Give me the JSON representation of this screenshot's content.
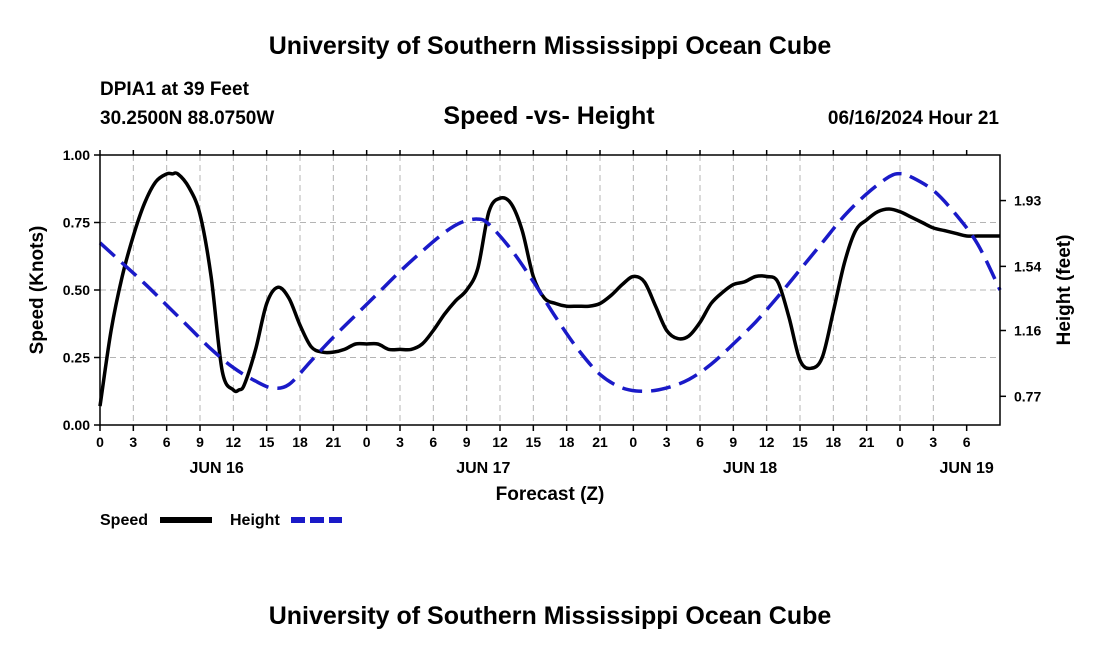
{
  "header": {
    "title": "University of Southern Mississippi Ocean Cube",
    "station": "DPIA1 at 39 Feet",
    "coords": "30.2500N  88.0750W",
    "chart_title": "Speed -vs- Height",
    "timestamp": "06/16/2024 Hour 21",
    "footer_title": "University of Southern Mississippi Ocean Cube"
  },
  "chart_data": {
    "type": "line",
    "title": "Speed -vs- Height",
    "xlabel": "Forecast (Z)",
    "ylabel_left": "Speed (Knots)",
    "ylabel_right": "Height (feet)",
    "x_hours_range": [
      0,
      81
    ],
    "y_left_range": [
      0,
      1
    ],
    "y_left_ticks": [
      "0.00",
      "0.25",
      "0.50",
      "0.75",
      "1.00"
    ],
    "y_right_range": [
      0.6,
      2.2
    ],
    "y_right_tick_values": [
      0.77,
      1.16,
      1.54,
      1.93
    ],
    "y_right_ticks": [
      "0.77",
      "1.16",
      "1.54",
      "1.93"
    ],
    "x_tick_labels": [
      "0",
      "3",
      "6",
      "9",
      "12",
      "15",
      "18",
      "21",
      "0",
      "3",
      "6",
      "9",
      "12",
      "15",
      "18",
      "21",
      "0",
      "3",
      "6",
      "9",
      "12",
      "15",
      "18",
      "21",
      "0",
      "3",
      "6"
    ],
    "date_labels": [
      {
        "label": "JUN 16",
        "hour": 10.5
      },
      {
        "label": "JUN 17",
        "hour": 34.5
      },
      {
        "label": "JUN 18",
        "hour": 58.5
      },
      {
        "label": "JUN 19",
        "hour": 78
      }
    ],
    "grid": true,
    "series": [
      {
        "name": "Speed",
        "axis": "left",
        "color": "#000000",
        "dash": "solid",
        "x": [
          0,
          1,
          2,
          3,
          4,
          5,
          6,
          6.5,
          7,
          8,
          9,
          10,
          11,
          12,
          12.5,
          13,
          14,
          15,
          16,
          17,
          18,
          19,
          20,
          21,
          22,
          23,
          24,
          25,
          26,
          27,
          28,
          29,
          30,
          31,
          32,
          33,
          34,
          35,
          36,
          37,
          38,
          39,
          40,
          41,
          42,
          43,
          44,
          45,
          46,
          47,
          48,
          49,
          50,
          51,
          52,
          53,
          54,
          55,
          56,
          57,
          58,
          59,
          60,
          61,
          62,
          63,
          64,
          65,
          66,
          67,
          68,
          69,
          70,
          71,
          72,
          73,
          74,
          75,
          76,
          77,
          78,
          79,
          80,
          81
        ],
        "values": [
          0.07,
          0.35,
          0.55,
          0.7,
          0.82,
          0.9,
          0.93,
          0.93,
          0.93,
          0.88,
          0.78,
          0.55,
          0.2,
          0.13,
          0.13,
          0.15,
          0.28,
          0.45,
          0.51,
          0.47,
          0.37,
          0.29,
          0.27,
          0.27,
          0.28,
          0.3,
          0.3,
          0.3,
          0.28,
          0.28,
          0.28,
          0.3,
          0.35,
          0.41,
          0.46,
          0.5,
          0.58,
          0.79,
          0.84,
          0.82,
          0.72,
          0.55,
          0.47,
          0.45,
          0.44,
          0.44,
          0.44,
          0.45,
          0.48,
          0.52,
          0.55,
          0.53,
          0.44,
          0.35,
          0.32,
          0.33,
          0.38,
          0.45,
          0.49,
          0.52,
          0.53,
          0.55,
          0.55,
          0.53,
          0.4,
          0.24,
          0.21,
          0.25,
          0.42,
          0.6,
          0.72,
          0.76,
          0.79,
          0.8,
          0.79,
          0.77,
          0.75,
          0.73,
          0.72,
          0.71,
          0.7,
          0.7,
          0.7,
          0.7
        ]
      },
      {
        "name": "Height",
        "axis": "right",
        "color": "#1a1ac8",
        "dash": "dashed",
        "x": [
          0,
          2,
          4,
          6,
          8,
          10,
          12,
          14,
          15.5,
          17,
          19,
          21,
          23,
          25,
          27,
          29,
          31,
          32.5,
          34,
          35,
          37,
          39,
          41,
          43,
          45,
          47,
          49,
          51,
          53,
          55,
          57,
          59,
          61,
          63,
          65,
          67,
          69,
          71,
          72,
          73,
          75,
          77,
          79,
          81
        ],
        "values": [
          1.68,
          1.56,
          1.44,
          1.31,
          1.18,
          1.05,
          0.94,
          0.86,
          0.82,
          0.84,
          0.98,
          1.12,
          1.25,
          1.38,
          1.51,
          1.63,
          1.74,
          1.8,
          1.82,
          1.79,
          1.64,
          1.45,
          1.24,
          1.05,
          0.9,
          0.82,
          0.8,
          0.82,
          0.87,
          0.96,
          1.08,
          1.21,
          1.36,
          1.52,
          1.68,
          1.84,
          1.97,
          2.07,
          2.09,
          2.07,
          1.99,
          1.85,
          1.67,
          1.4
        ]
      }
    ]
  },
  "legend": {
    "speed_label": "Speed",
    "height_label": "Height"
  }
}
